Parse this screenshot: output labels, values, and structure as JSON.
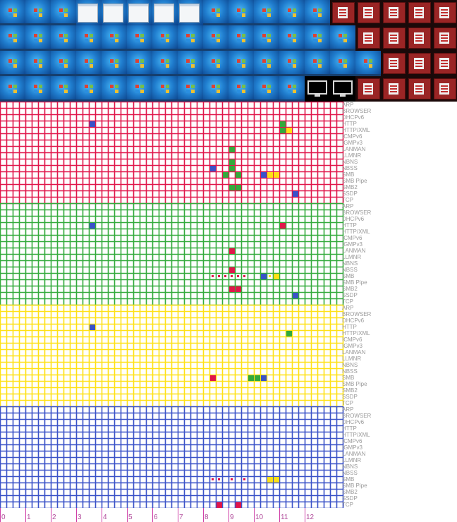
{
  "screenshots": [
    [
      "desktop",
      "desktop",
      "desktop",
      "dialog",
      "dialog",
      "dialog",
      "dialog",
      "dialog",
      "desktop",
      "desktop",
      "desktop",
      "desktop",
      "desktop",
      "app",
      "app",
      "app",
      "app",
      "app"
    ],
    [
      "desktop",
      "desktop",
      "desktop",
      "desktop",
      "desktop",
      "desktop",
      "desktop",
      "desktop",
      "desktop",
      "desktop",
      "desktop",
      "desktop",
      "desktop",
      "desktop",
      "app",
      "app",
      "app",
      "app"
    ],
    [
      "desktop",
      "desktop",
      "desktop",
      "desktop",
      "desktop",
      "desktop",
      "desktop",
      "desktop",
      "desktop",
      "desktop",
      "desktop",
      "desktop",
      "desktop",
      "desktop",
      "desktop",
      "app",
      "app",
      "app"
    ],
    [
      "desktop",
      "desktop",
      "desktop",
      "desktop",
      "desktop",
      "desktop",
      "desktop",
      "desktop",
      "desktop",
      "desktop",
      "desktop",
      "desktop",
      "black",
      "black",
      "app",
      "app",
      "app",
      "app"
    ]
  ],
  "protocols": [
    "ARP",
    "BROWSER",
    "DHCPv6",
    "HTTP",
    "HTTP/XML",
    "ICMPv6",
    "IGMPv3",
    "LANMAN",
    "LLMNR",
    "NBNS",
    "NBSS",
    "SMB",
    "SMB Pipe",
    "SMB2",
    "SSDP",
    "TCP"
  ],
  "colors": {
    "red": "#e0164a",
    "green": "#33aa3c",
    "yellow": "#ffe116",
    "blue": "#3a52c8",
    "tick": "#d040a8",
    "label": "#9a9a9a"
  },
  "sections": [
    {
      "color": "red",
      "events": [
        {
          "row": 3,
          "col": 14,
          "c": "blue"
        },
        {
          "row": 3,
          "col": 44,
          "c": "green"
        },
        {
          "row": 4,
          "col": 44,
          "c": "green"
        },
        {
          "row": 4,
          "col": 45,
          "c": "yellow"
        },
        {
          "row": 7,
          "col": 36,
          "c": "green"
        },
        {
          "row": 9,
          "col": 36,
          "c": "green"
        },
        {
          "row": 10,
          "col": 33,
          "c": "blue"
        },
        {
          "row": 10,
          "col": 36,
          "c": "green"
        },
        {
          "row": 11,
          "col": 35,
          "c": "green"
        },
        {
          "row": 11,
          "col": 37,
          "c": "green"
        },
        {
          "row": 11,
          "col": 41,
          "c": "blue"
        },
        {
          "row": 11,
          "col": 42,
          "c": "yellow"
        },
        {
          "row": 11,
          "col": 43,
          "c": "yellow"
        },
        {
          "row": 13,
          "col": 36,
          "c": "green"
        },
        {
          "row": 13,
          "col": 37,
          "c": "green"
        },
        {
          "row": 14,
          "col": 46,
          "c": "blue"
        }
      ],
      "dots": []
    },
    {
      "color": "green",
      "events": [
        {
          "row": 3,
          "col": 14,
          "c": "blue"
        },
        {
          "row": 3,
          "col": 44,
          "c": "red"
        },
        {
          "row": 7,
          "col": 36,
          "c": "red"
        },
        {
          "row": 10,
          "col": 36,
          "c": "red"
        },
        {
          "row": 11,
          "col": 41,
          "c": "blue"
        },
        {
          "row": 11,
          "col": 43,
          "c": "yellow"
        },
        {
          "row": 13,
          "col": 36,
          "c": "red"
        },
        {
          "row": 13,
          "col": 37,
          "c": "red"
        },
        {
          "row": 14,
          "col": 46,
          "c": "blue"
        }
      ],
      "dots": [
        {
          "row": 11,
          "col": 33,
          "c": "red"
        },
        {
          "row": 11,
          "col": 34,
          "c": "red"
        },
        {
          "row": 11,
          "col": 35,
          "c": "red"
        },
        {
          "row": 11,
          "col": 36,
          "c": "red"
        },
        {
          "row": 11,
          "col": 37,
          "c": "red"
        },
        {
          "row": 11,
          "col": 38,
          "c": "red"
        },
        {
          "row": 11,
          "col": 42,
          "c": "yellow"
        }
      ]
    },
    {
      "color": "yellow",
      "events": [
        {
          "row": 3,
          "col": 14,
          "c": "blue"
        },
        {
          "row": 4,
          "col": 45,
          "c": "green"
        },
        {
          "row": 11,
          "col": 33,
          "c": "red"
        },
        {
          "row": 11,
          "col": 39,
          "c": "green"
        },
        {
          "row": 11,
          "col": 40,
          "c": "green"
        },
        {
          "row": 11,
          "col": 41,
          "c": "blue"
        }
      ],
      "dots": []
    },
    {
      "color": "blue",
      "events": [
        {
          "row": 11,
          "col": 42,
          "c": "yellow"
        },
        {
          "row": 11,
          "col": 43,
          "c": "yellow"
        },
        {
          "row": 15,
          "col": 34,
          "c": "red"
        },
        {
          "row": 15,
          "col": 37,
          "c": "red"
        }
      ],
      "dots": [
        {
          "row": 11,
          "col": 33,
          "c": "red"
        },
        {
          "row": 11,
          "col": 34,
          "c": "red"
        },
        {
          "row": 11,
          "col": 36,
          "c": "red"
        },
        {
          "row": 11,
          "col": 38,
          "c": "red"
        }
      ]
    }
  ],
  "axis": {
    "labels": [
      "0",
      "1",
      "2",
      "3",
      "4",
      "5",
      "6",
      "7",
      "8",
      "9",
      "10",
      "11",
      "12"
    ]
  }
}
